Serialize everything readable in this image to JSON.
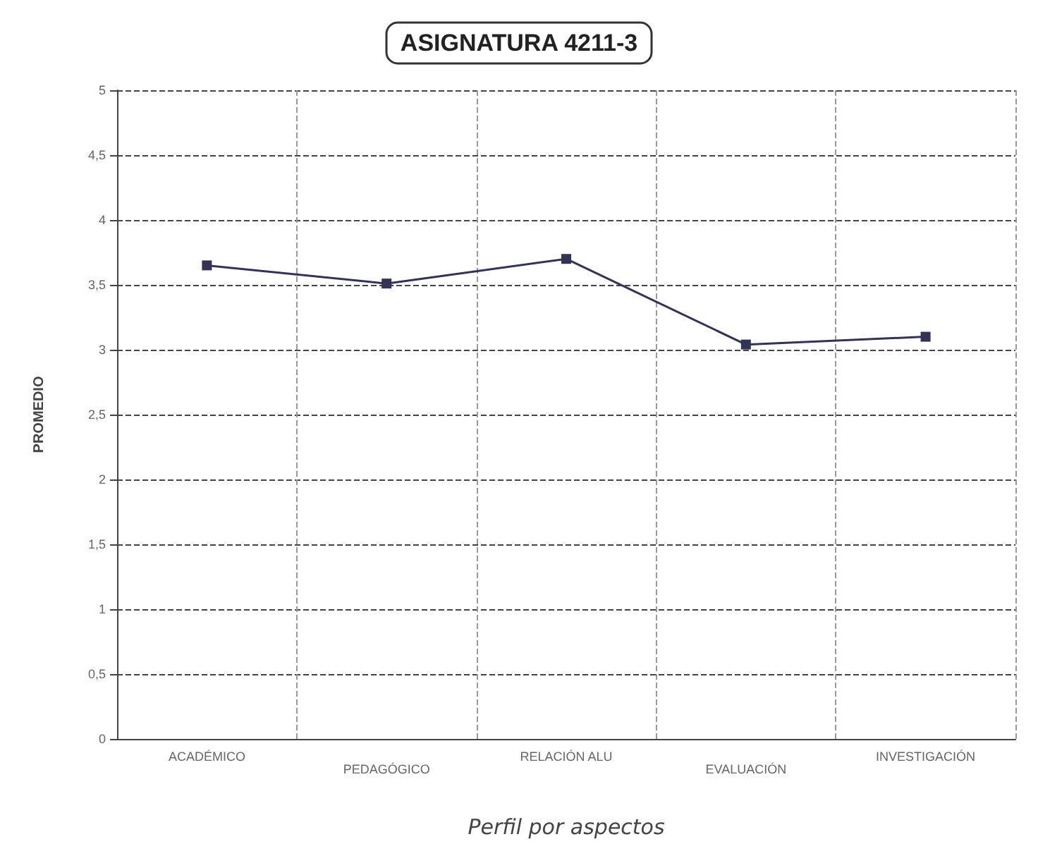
{
  "chart_data": {
    "type": "line",
    "title": "ASIGNATURA 4211-3",
    "xlabel": "Perfil por aspectos",
    "ylabel": "PROMEDIO",
    "categories": [
      "ACADÉMICO",
      "PEDAGÓGICO",
      "RELACIÓN ALU",
      "EVALUACIÓN",
      "INVESTIGACIÓN"
    ],
    "series": [
      {
        "color": "#333355",
        "values": [
          3.65,
          3.51,
          3.7,
          3.04,
          3.1
        ]
      }
    ],
    "ylim": [
      0,
      5
    ],
    "yticks": [
      0,
      {
        "value": 0.5,
        "label": "0,5"
      },
      1,
      {
        "value": 1.5,
        "label": "1,5"
      },
      2,
      {
        "value": 2.5,
        "label": "2,5"
      },
      3,
      {
        "value": 3.5,
        "label": "3,5"
      },
      4,
      {
        "value": 4.5,
        "label": "4,5"
      },
      5
    ],
    "grid": true,
    "marker": "square",
    "line_style": "solid"
  }
}
